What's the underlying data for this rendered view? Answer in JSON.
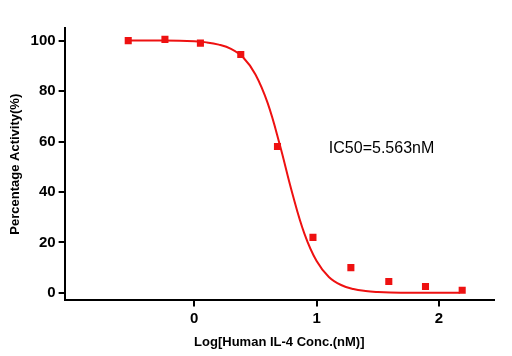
{
  "chart_data": {
    "type": "scatter",
    "x_label": "Log[Human IL-4 Conc.(nM)]",
    "y_label": "Percentage Activity(%)",
    "xlim": [
      -1.06,
      2.45
    ],
    "xticks": [
      0,
      1,
      2
    ],
    "ylim": [
      -3,
      105
    ],
    "yticks": [
      0,
      20,
      40,
      60,
      80,
      100
    ],
    "grid": false,
    "series": [
      {
        "type": "scatter",
        "marker": "square",
        "color": "#ee1111",
        "x": [
          -0.54,
          -0.24,
          0.05,
          0.38,
          0.68,
          0.97,
          1.28,
          1.59,
          1.89,
          2.19
        ],
        "values": [
          100,
          100.5,
          99,
          94.5,
          58,
          22,
          10,
          4.5,
          2.5,
          1
        ]
      },
      {
        "type": "line",
        "line_style": "solid",
        "color": "#ee1111",
        "x": [
          -0.55,
          -0.25,
          0.0,
          0.1,
          0.2,
          0.3,
          0.4,
          0.5,
          0.6,
          0.7,
          0.8,
          0.9,
          1.0,
          1.1,
          1.2,
          1.3,
          1.4,
          1.5,
          1.6,
          1.8,
          2.17
        ],
        "values": [
          100,
          100,
          99.7,
          99.3,
          98.4,
          96.7,
          93.3,
          86.6,
          75.2,
          58.5,
          39.7,
          23.5,
          12.6,
          6.3,
          3.1,
          1.5,
          0.7,
          0.3,
          0.1,
          0,
          0
        ]
      }
    ],
    "annotations": [
      {
        "text": "IC50=5.563nM",
        "x": 1.1,
        "y": 57
      }
    ]
  }
}
